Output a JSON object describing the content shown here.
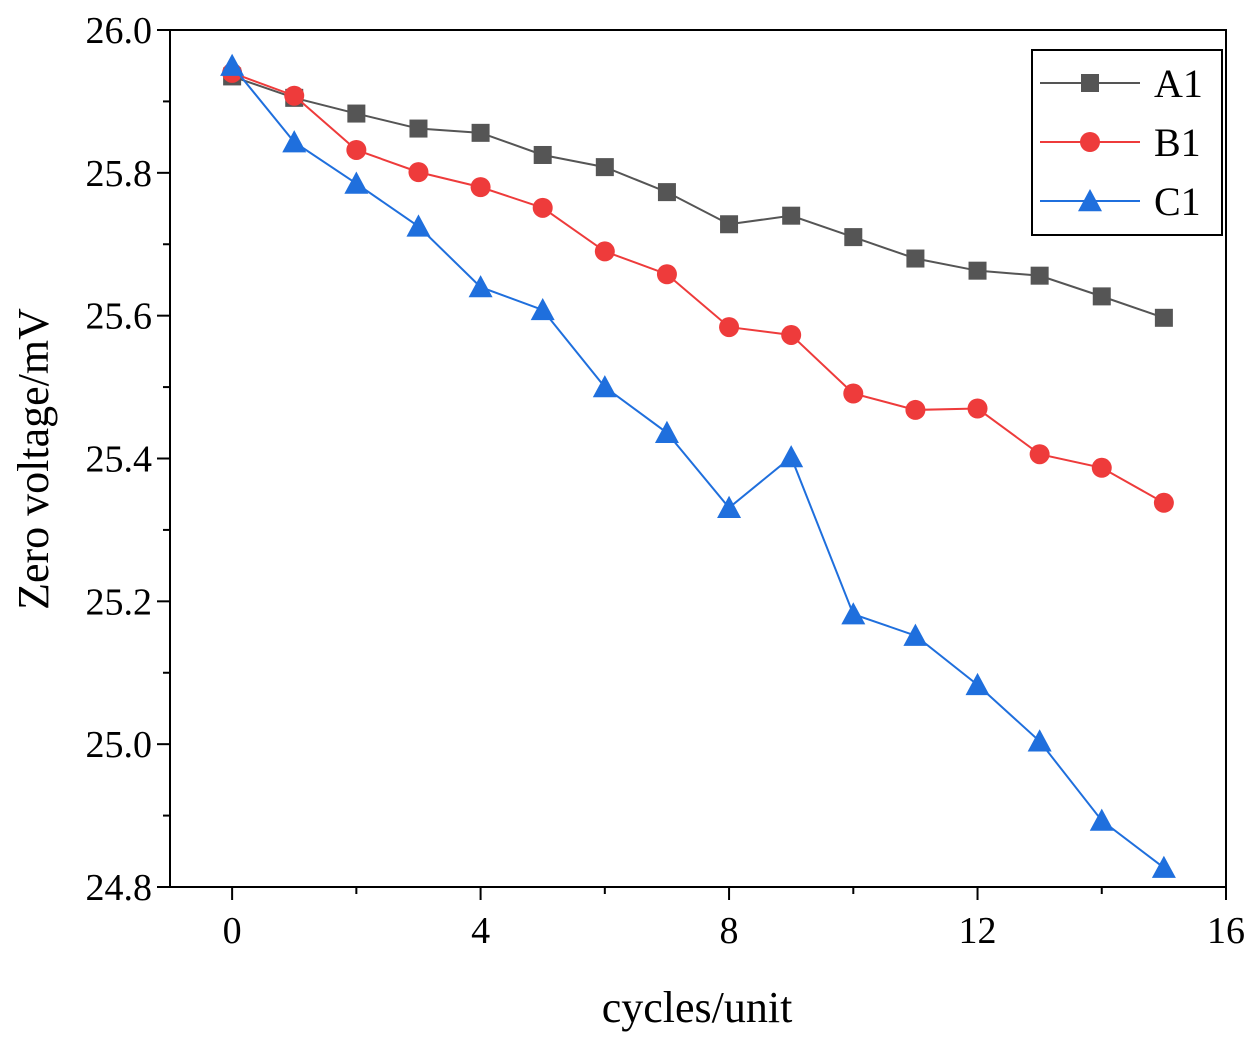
{
  "chart_data": {
    "type": "line",
    "title": "",
    "xlabel": "cycles/unit",
    "ylabel": "Zero voltage/mV",
    "xlim": [
      -1,
      16
    ],
    "ylim": [
      24.8,
      26.0
    ],
    "xticks": [
      0,
      4,
      8,
      12,
      16
    ],
    "xtick_labels": [
      "0",
      "4",
      "8",
      "12",
      "16"
    ],
    "yticks": [
      24.8,
      25.0,
      25.2,
      25.4,
      25.6,
      25.8,
      26.0
    ],
    "ytick_labels": [
      "24.8",
      "25.0",
      "25.2",
      "25.4",
      "25.6",
      "25.8",
      "26.0"
    ],
    "grid": false,
    "legend_position": "top-right",
    "x": [
      0,
      1,
      2,
      3,
      4,
      5,
      6,
      7,
      8,
      9,
      10,
      11,
      12,
      13,
      14,
      15
    ],
    "series": [
      {
        "name": "A1",
        "color": "#555555",
        "marker": "square",
        "values": [
          25.935,
          25.905,
          25.883,
          25.862,
          25.856,
          25.825,
          25.808,
          25.773,
          25.728,
          25.74,
          25.71,
          25.68,
          25.663,
          25.656,
          25.627,
          25.597
        ]
      },
      {
        "name": "B1",
        "color": "#ee3b3b",
        "marker": "circle",
        "values": [
          25.94,
          25.908,
          25.832,
          25.801,
          25.78,
          25.751,
          25.69,
          25.658,
          25.584,
          25.573,
          25.491,
          25.468,
          25.47,
          25.406,
          25.387,
          25.338
        ]
      },
      {
        "name": "C1",
        "color": "#1f6fdd",
        "marker": "triangle",
        "values": [
          25.95,
          25.843,
          25.785,
          25.725,
          25.64,
          25.608,
          25.5,
          25.436,
          25.331,
          25.402,
          25.182,
          25.152,
          25.083,
          25.004,
          24.893,
          24.827
        ]
      }
    ]
  }
}
